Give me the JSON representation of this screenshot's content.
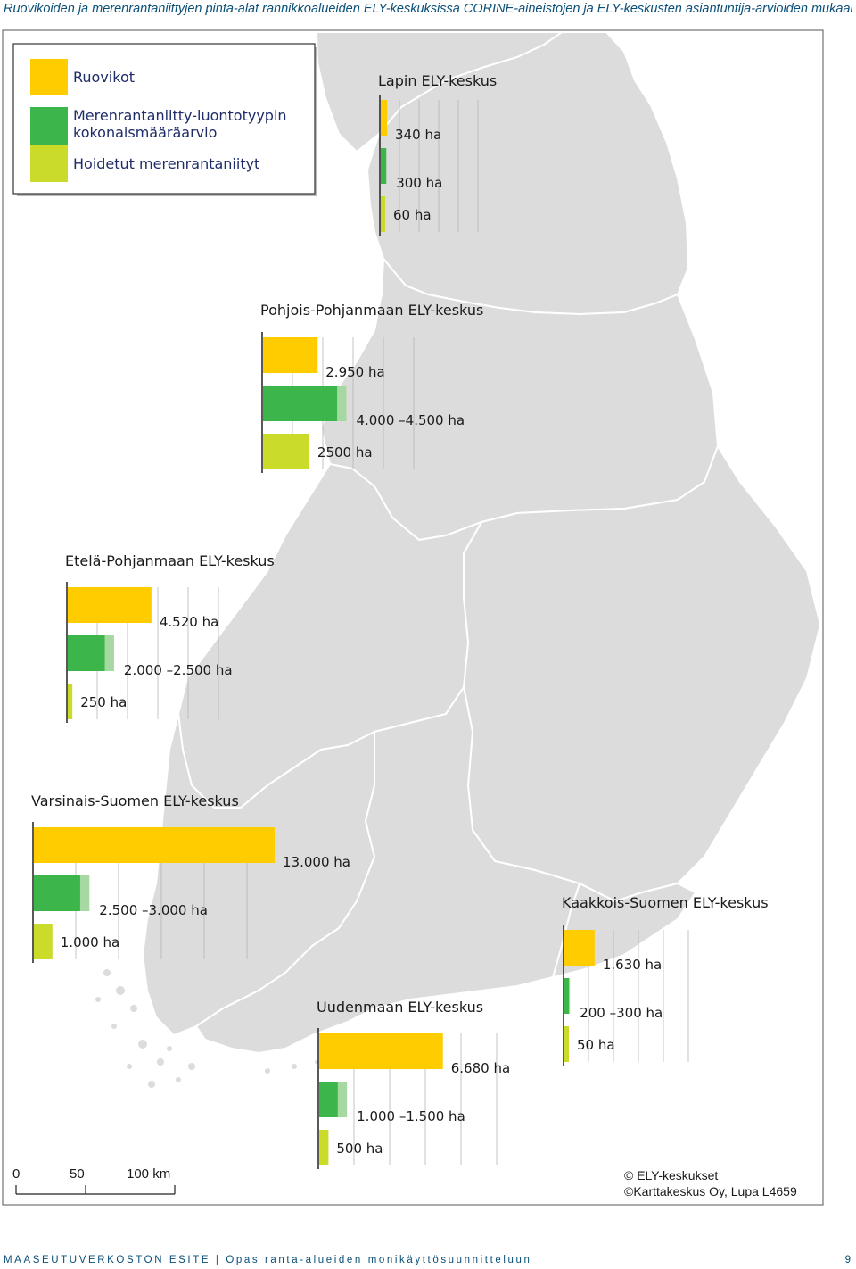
{
  "caption": "Ruovikoiden ja merenrantaniittyjen pinta-alat rannikkoalueiden ELY-keskuksissa CORINE-aineistojen ja ELY-keskusten asiantuntija-arvioiden mukaan.",
  "legend": [
    {
      "label": "Ruovikot",
      "color": "#ffcc00"
    },
    {
      "label": "Merenrantaniitty-luontotyypin kokonaismääräarvio",
      "color": "#3cb54a"
    },
    {
      "label": "Hoidetut merenrantaniityt",
      "color": "#cadb2a"
    }
  ],
  "legend_lines": [
    "Merenrantaniitty-luontotyypin",
    "kokonaismääräarvio"
  ],
  "colors": {
    "reed": "#ffcc00",
    "meadow": "#3cb54a",
    "meadow_range": "#a6d9a2",
    "managed": "#cadb2a",
    "land": "#dcdcdc",
    "border": "#ffffff"
  },
  "chart_data": {
    "type": "bar",
    "unit": "ha",
    "series_names": [
      "Ruovikot",
      "Merenrantaniitty-luontotyypin kokonaismääräarvio",
      "Hoidetut merenrantaniityt"
    ],
    "regions": [
      {
        "name": "Lapin ELY-keskus",
        "reed": 340,
        "meadow_min": 300,
        "meadow_max": 300,
        "managed": 60,
        "labels": [
          "340 ha",
          "300 ha",
          "60 ha"
        ]
      },
      {
        "name": "Pohjois-Pohjanmaan ELY-keskus",
        "reed": 2950,
        "meadow_min": 4000,
        "meadow_max": 4500,
        "managed": 2500,
        "labels": [
          "2.950 ha",
          "4.000 –4.500 ha",
          "2500 ha"
        ]
      },
      {
        "name": "Etelä-Pohjanmaan ELY-keskus",
        "reed": 4520,
        "meadow_min": 2000,
        "meadow_max": 2500,
        "managed": 250,
        "labels": [
          "4.520 ha",
          "2.000 –2.500 ha",
          "250 ha"
        ]
      },
      {
        "name": "Varsinais-Suomen ELY-keskus",
        "reed": 13000,
        "meadow_min": 2500,
        "meadow_max": 3000,
        "managed": 1000,
        "labels": [
          "13.000 ha",
          "2.500 –3.000 ha",
          "1.000 ha"
        ]
      },
      {
        "name": "Uudenmaan ELY-keskus",
        "reed": 6680,
        "meadow_min": 1000,
        "meadow_max": 1500,
        "managed": 500,
        "labels": [
          "6.680 ha",
          "1.000 –1.500 ha",
          "500 ha"
        ]
      },
      {
        "name": "Kaakkois-Suomen ELY-keskus",
        "reed": 1630,
        "meadow_min": 200,
        "meadow_max": 300,
        "managed": 50,
        "labels": [
          "1.630 ha",
          "200 –300 ha",
          "50 ha"
        ]
      }
    ]
  },
  "scale_bar": {
    "labels": [
      "0",
      "50",
      "100 km"
    ]
  },
  "credits": [
    "© ELY-keskukset",
    "©Karttakeskus Oy, Lupa L4659"
  ],
  "footer": {
    "series_name": "MAASEUTUVERKOSTON ESITE",
    "separator": "|",
    "publication": "Opas ranta-alueiden monikäyttösuunnitteluun",
    "page": "9"
  }
}
